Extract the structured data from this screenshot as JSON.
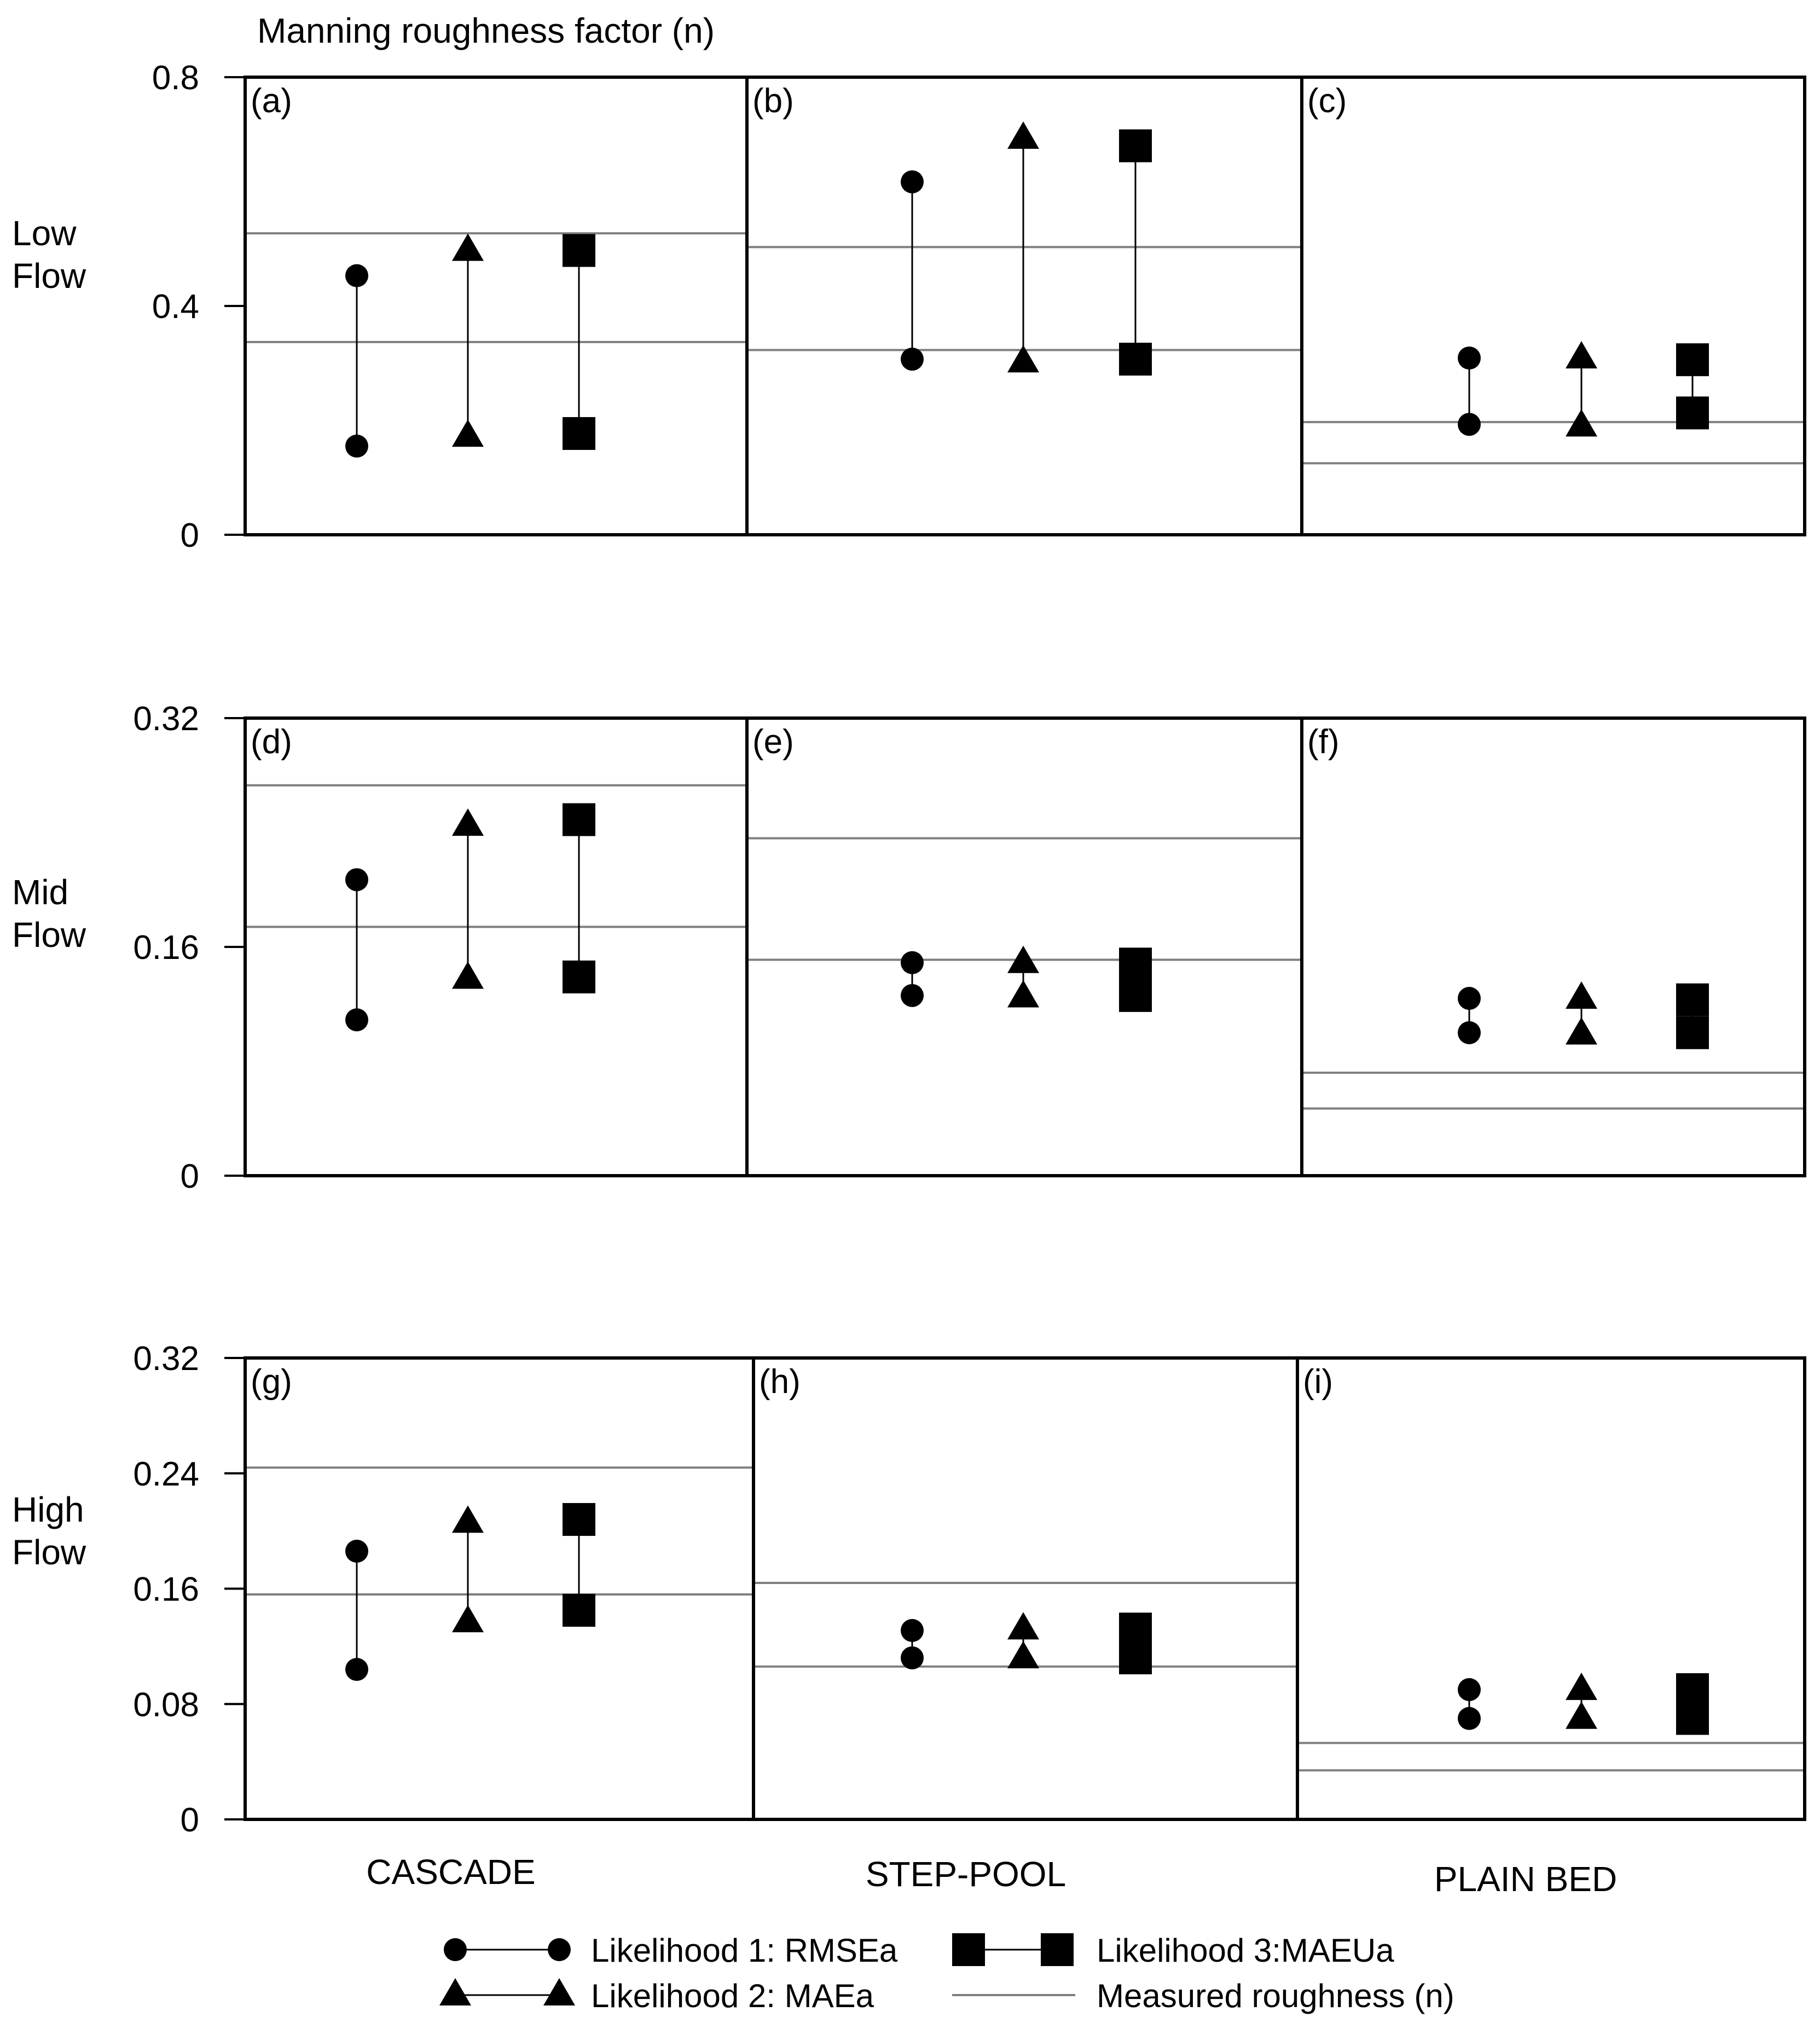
{
  "chart_data": {
    "type": "range-plot",
    "title": "Manning roughness factor (n)",
    "columns": [
      "CASCADE",
      "STEP-POOL",
      "PLAIN BED"
    ],
    "rows": [
      {
        "label": [
          "Low",
          "Flow"
        ],
        "ylim": [
          0,
          0.8
        ],
        "ticks": [
          {
            "value": 0,
            "label": "0"
          },
          {
            "value": 0.4,
            "label": "0.4"
          },
          {
            "value": 0.8,
            "label": "0.8"
          }
        ],
        "panels": [
          {
            "letter": "(a)",
            "measured": [
              0.527,
              0.337
            ],
            "series": [
              {
                "marker": "circle",
                "low": 0.155,
                "high": 0.453
              },
              {
                "marker": "triangle",
                "low": 0.172,
                "high": 0.497
              },
              {
                "marker": "square",
                "low": 0.177,
                "high": 0.497
              }
            ]
          },
          {
            "letter": "(b)",
            "measured": [
              0.503,
              0.323
            ],
            "series": [
              {
                "marker": "circle",
                "low": 0.307,
                "high": 0.617
              },
              {
                "marker": "triangle",
                "low": 0.302,
                "high": 0.693
              },
              {
                "marker": "square",
                "low": 0.307,
                "high": 0.68
              }
            ]
          },
          {
            "letter": "(c)",
            "measured": [
              0.197,
              0.125
            ],
            "series": [
              {
                "marker": "circle",
                "low": 0.193,
                "high": 0.309
              },
              {
                "marker": "triangle",
                "low": 0.19,
                "high": 0.309
              },
              {
                "marker": "square",
                "low": 0.213,
                "high": 0.306
              }
            ]
          }
        ]
      },
      {
        "label": [
          "Mid",
          "Flow"
        ],
        "ylim": [
          0,
          0.32
        ],
        "ticks": [
          {
            "value": 0,
            "label": "0"
          },
          {
            "value": 0.16,
            "label": "0.16"
          },
          {
            "value": 0.32,
            "label": "0.32"
          }
        ],
        "panels": [
          {
            "letter": "(d)",
            "measured": [
              0.273,
              0.174
            ],
            "series": [
              {
                "marker": "circle",
                "low": 0.109,
                "high": 0.207
              },
              {
                "marker": "triangle",
                "low": 0.138,
                "high": 0.245
              },
              {
                "marker": "square",
                "low": 0.139,
                "high": 0.249
              }
            ]
          },
          {
            "letter": "(e)",
            "measured": [
              0.236,
              0.151
            ],
            "series": [
              {
                "marker": "circle",
                "low": 0.126,
                "high": 0.149
              },
              {
                "marker": "triangle",
                "low": 0.125,
                "high": 0.149
              },
              {
                "marker": "square",
                "low": 0.126,
                "high": 0.148
              }
            ]
          },
          {
            "letter": "(f)",
            "measured": [
              0.072,
              0.047
            ],
            "series": [
              {
                "marker": "circle",
                "low": 0.1,
                "high": 0.124
              },
              {
                "marker": "triangle",
                "low": 0.099,
                "high": 0.124
              },
              {
                "marker": "square",
                "low": 0.1,
                "high": 0.123
              }
            ]
          }
        ]
      },
      {
        "label": [
          "High",
          "Flow"
        ],
        "ylim": [
          0,
          0.32
        ],
        "ticks": [
          {
            "value": 0,
            "label": "0"
          },
          {
            "value": 0.08,
            "label": "0.08"
          },
          {
            "value": 0.16,
            "label": "0.16"
          },
          {
            "value": 0.24,
            "label": "0.24"
          },
          {
            "value": 0.32,
            "label": "0.32"
          }
        ],
        "panels": [
          {
            "letter": "(g)",
            "measured": [
              0.244,
              0.156
            ],
            "series": [
              {
                "marker": "circle",
                "low": 0.104,
                "high": 0.186
              },
              {
                "marker": "triangle",
                "low": 0.137,
                "high": 0.206
              },
              {
                "marker": "square",
                "low": 0.145,
                "high": 0.208
              }
            ]
          },
          {
            "letter": "(h)",
            "measured": [
              0.164,
              0.106
            ],
            "series": [
              {
                "marker": "circle",
                "low": 0.112,
                "high": 0.131
              },
              {
                "marker": "triangle",
                "low": 0.112,
                "high": 0.132
              },
              {
                "marker": "square",
                "low": 0.112,
                "high": 0.132
              }
            ]
          },
          {
            "letter": "(i)",
            "measured": [
              0.053,
              0.034
            ],
            "series": [
              {
                "marker": "circle",
                "low": 0.07,
                "high": 0.09
              },
              {
                "marker": "triangle",
                "low": 0.07,
                "high": 0.09
              },
              {
                "marker": "square",
                "low": 0.07,
                "high": 0.09
              }
            ]
          }
        ]
      }
    ],
    "legend": [
      {
        "marker": "circle",
        "label": "Likelihood 1: RMSEa"
      },
      {
        "marker": "square",
        "label": "Likelihood 3:MAEUa"
      },
      {
        "marker": "triangle",
        "label": "Likelihood 2: MAEa"
      },
      {
        "marker": "line",
        "label": "Measured roughness (n)"
      }
    ],
    "colors": {
      "marker": "#000000",
      "measured_line": "#7f7f7f",
      "frame": "#000000"
    }
  }
}
